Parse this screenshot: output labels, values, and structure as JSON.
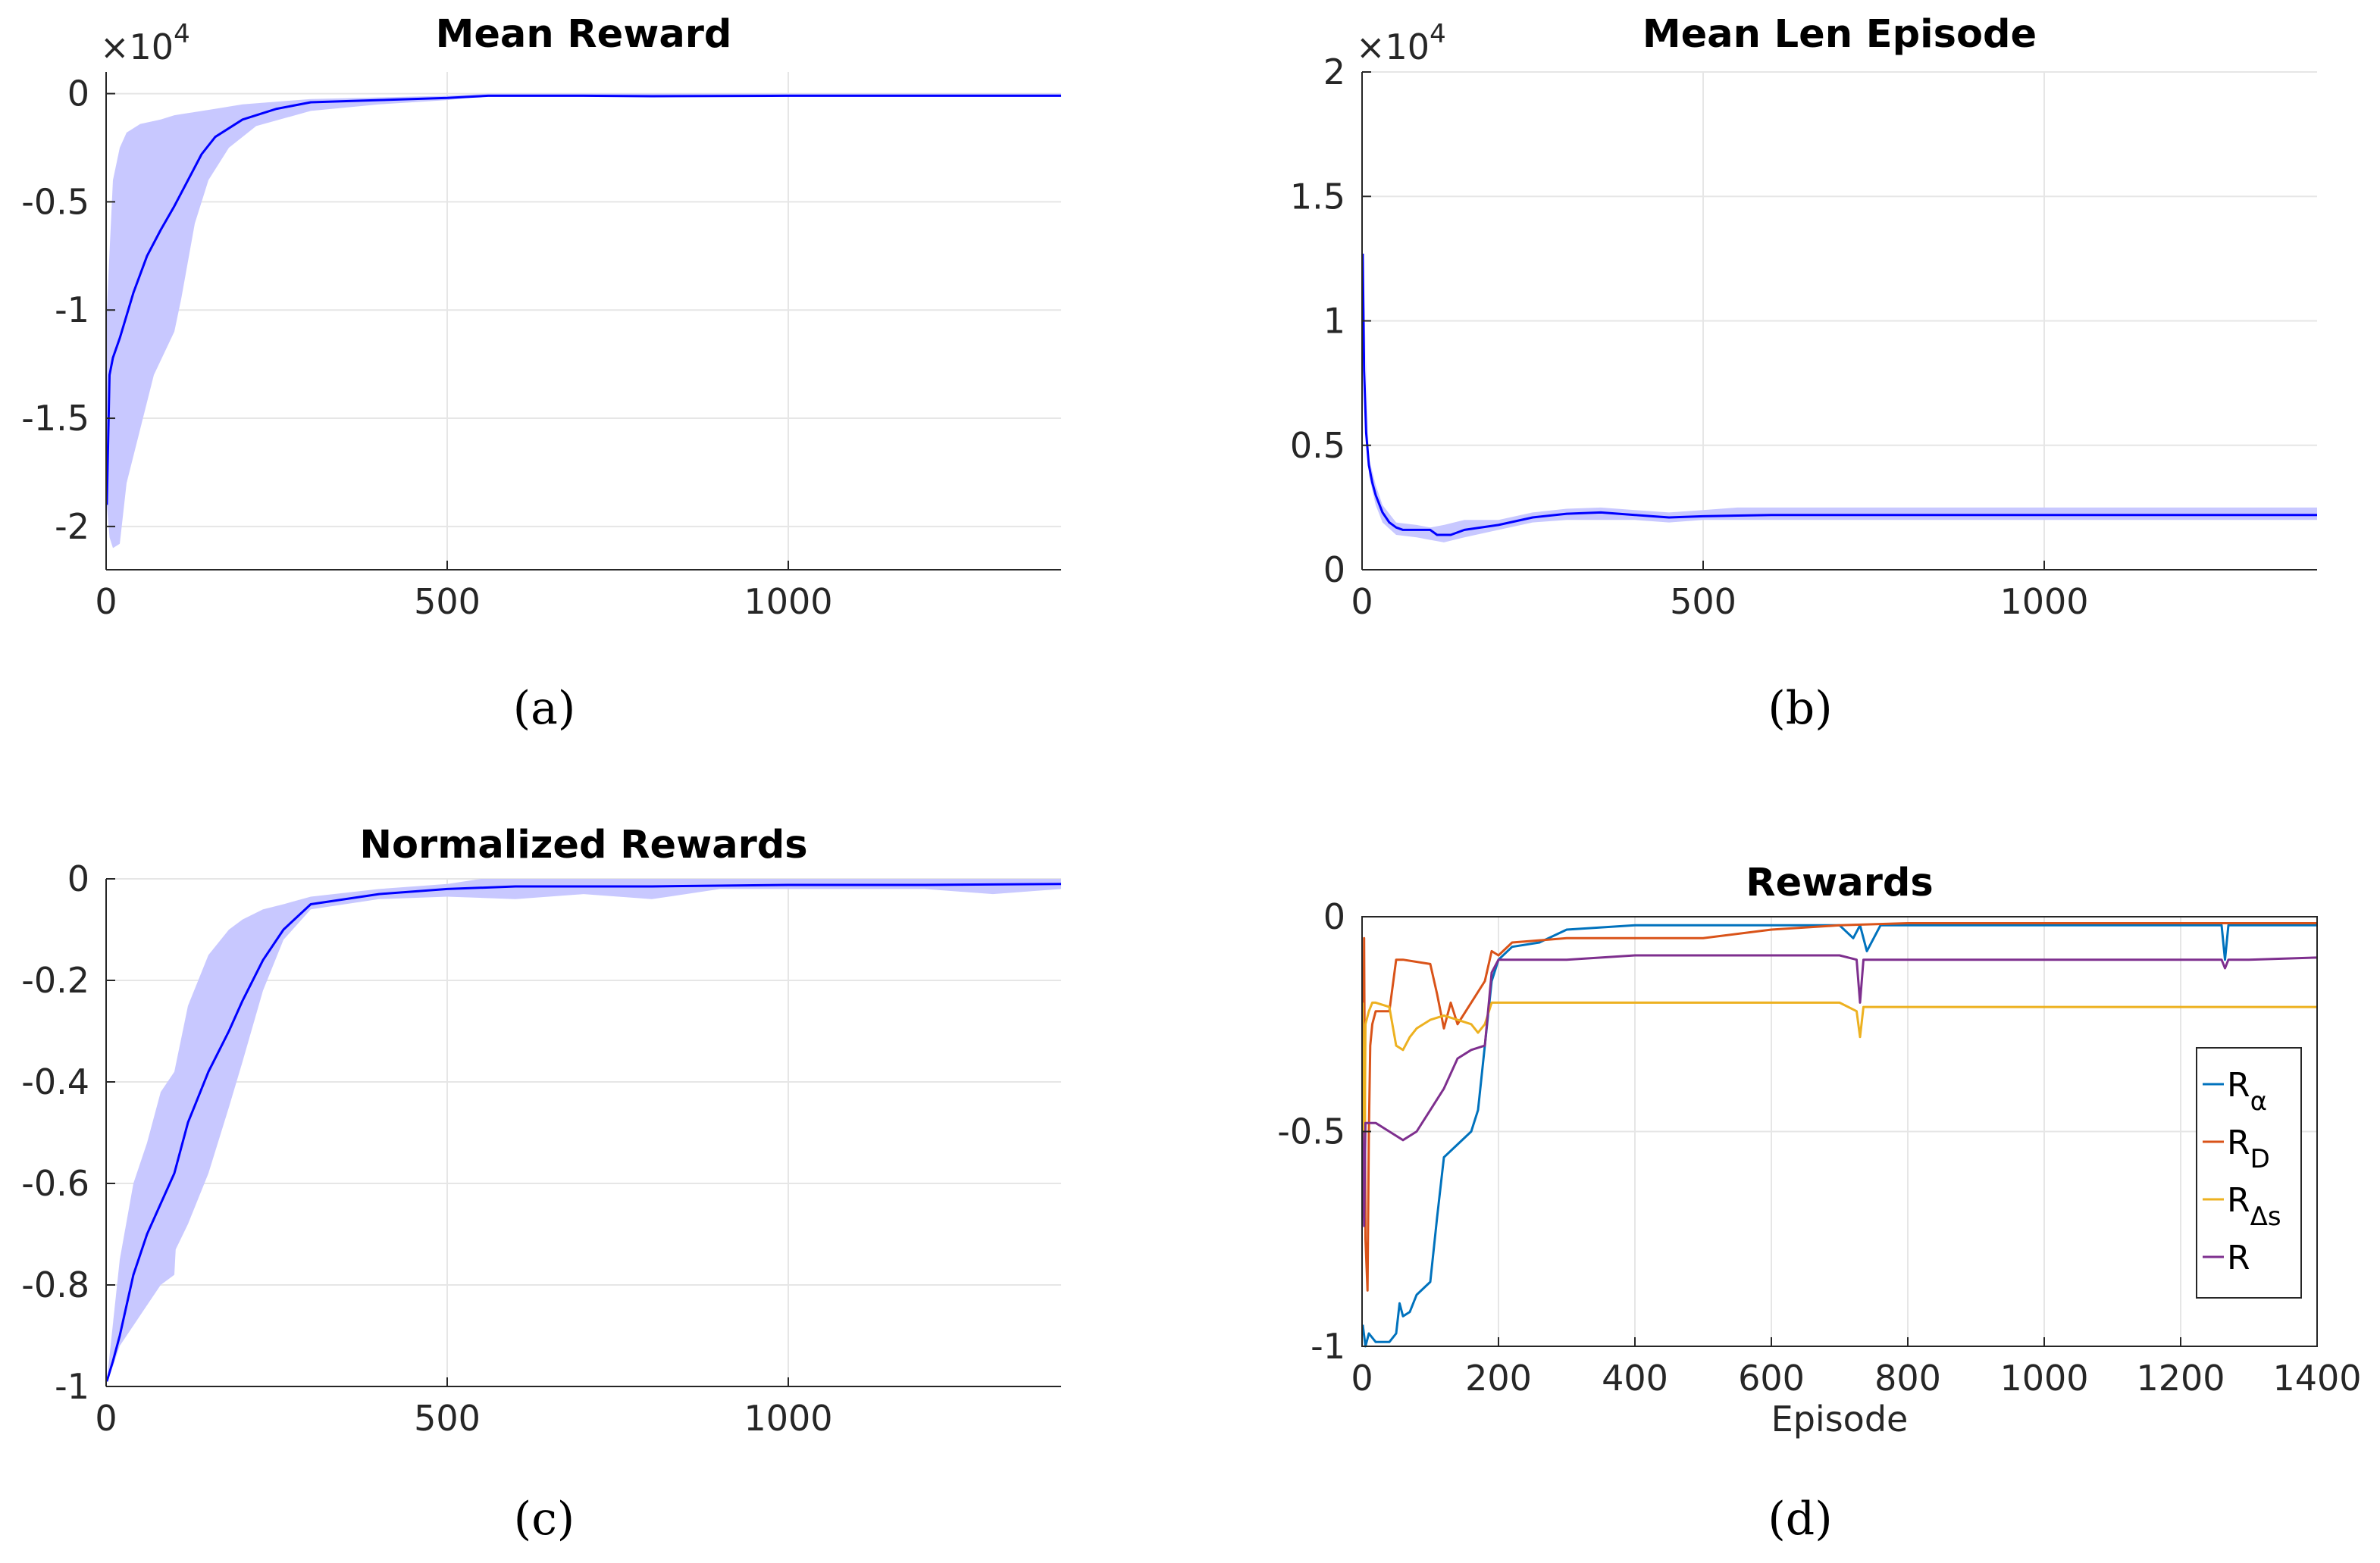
{
  "figure": {
    "panels": [
      {
        "label": "(a)"
      },
      {
        "label": "(b)"
      },
      {
        "label": "(c)"
      },
      {
        "label": "(d)"
      }
    ]
  },
  "chart_data": [
    {
      "type": "line",
      "title": "Mean Reward",
      "xlabel": "",
      "ylabel": "",
      "exponent_label": "×10",
      "exponent_power": "4",
      "xlim": [
        0,
        1400
      ],
      "ylim": [
        -2.2,
        0.1
      ],
      "xticks": [
        0,
        500,
        1000
      ],
      "xtick_labels": [
        "0",
        "500",
        "1000"
      ],
      "yticks": [
        -2,
        -1.5,
        -1,
        -0.5,
        0
      ],
      "ytick_labels": [
        "-2",
        "-1.5",
        "-1",
        "-0.5",
        "0"
      ],
      "grid": true,
      "line_color": "#0000ff",
      "band_color": "#c8c8ff",
      "series": [
        {
          "name": "mean",
          "x": [
            1,
            5,
            10,
            20,
            40,
            60,
            80,
            100,
            120,
            140,
            160,
            200,
            250,
            300,
            400,
            500,
            560,
            700,
            800,
            1000,
            1200,
            1400
          ],
          "values": [
            -1.9,
            -1.3,
            -1.22,
            -1.13,
            -0.92,
            -0.75,
            -0.63,
            -0.52,
            -0.4,
            -0.28,
            -0.2,
            -0.12,
            -0.07,
            -0.04,
            -0.03,
            -0.02,
            -0.01,
            -0.01,
            -0.012,
            -0.01,
            -0.01,
            -0.01
          ]
        },
        {
          "name": "band_upper",
          "x": [
            1,
            10,
            20,
            30,
            50,
            80,
            100,
            120,
            160,
            200,
            300,
            500,
            560,
            1400
          ],
          "values": [
            -1.0,
            -0.4,
            -0.25,
            -0.18,
            -0.14,
            -0.12,
            -0.1,
            -0.09,
            -0.07,
            -0.05,
            -0.025,
            -0.01,
            0.0,
            0.0
          ]
        },
        {
          "name": "band_lower",
          "x": [
            1,
            5,
            10,
            20,
            30,
            50,
            70,
            100,
            110,
            130,
            150,
            180,
            220,
            300,
            400,
            500,
            560,
            1400
          ],
          "values": [
            -1.9,
            -2.05,
            -2.1,
            -2.08,
            -1.8,
            -1.55,
            -1.3,
            -1.1,
            -0.95,
            -0.6,
            -0.4,
            -0.25,
            -0.15,
            -0.08,
            -0.05,
            -0.03,
            -0.01,
            -0.01
          ]
        }
      ]
    },
    {
      "type": "line",
      "title": "Mean Len Episode",
      "xlabel": "",
      "ylabel": "",
      "exponent_label": "×10",
      "exponent_power": "4",
      "xlim": [
        0,
        1400
      ],
      "ylim": [
        0,
        2.0
      ],
      "xticks": [
        0,
        500,
        1000
      ],
      "xtick_labels": [
        "0",
        "500",
        "1000"
      ],
      "yticks": [
        0,
        0.5,
        1,
        1.5,
        2
      ],
      "ytick_labels": [
        "0",
        "0.5",
        "1",
        "1.5",
        "2"
      ],
      "grid": true,
      "line_color": "#0000ff",
      "band_color": "#c8c8ff",
      "series": [
        {
          "name": "mean",
          "x": [
            1,
            3,
            6,
            10,
            15,
            20,
            30,
            40,
            50,
            60,
            80,
            100,
            110,
            130,
            150,
            200,
            250,
            300,
            350,
            400,
            450,
            500,
            600,
            800,
            1000,
            1200,
            1400
          ],
          "values": [
            1.27,
            0.8,
            0.55,
            0.42,
            0.35,
            0.3,
            0.23,
            0.19,
            0.17,
            0.16,
            0.16,
            0.16,
            0.14,
            0.14,
            0.16,
            0.18,
            0.21,
            0.225,
            0.23,
            0.22,
            0.21,
            0.215,
            0.22,
            0.22,
            0.22,
            0.22,
            0.22
          ]
        },
        {
          "name": "band_upper",
          "x": [
            1,
            10,
            20,
            30,
            50,
            80,
            100,
            120,
            150,
            200,
            250,
            300,
            350,
            400,
            450,
            500,
            550,
            800,
            1000,
            1400
          ],
          "values": [
            1.27,
            0.45,
            0.34,
            0.26,
            0.19,
            0.18,
            0.17,
            0.18,
            0.2,
            0.2,
            0.23,
            0.245,
            0.25,
            0.24,
            0.23,
            0.24,
            0.25,
            0.25,
            0.25,
            0.25
          ]
        },
        {
          "name": "band_lower",
          "x": [
            1,
            10,
            20,
            30,
            50,
            80,
            100,
            120,
            150,
            200,
            250,
            300,
            350,
            400,
            450,
            500,
            550,
            800,
            1000,
            1400
          ],
          "values": [
            1.27,
            0.38,
            0.26,
            0.19,
            0.14,
            0.13,
            0.12,
            0.11,
            0.13,
            0.16,
            0.19,
            0.2,
            0.2,
            0.2,
            0.19,
            0.2,
            0.2,
            0.2,
            0.2,
            0.2
          ]
        }
      ]
    },
    {
      "type": "line",
      "title": "Normalized Rewards",
      "xlabel": "",
      "ylabel": "",
      "xlim": [
        0,
        1400
      ],
      "ylim": [
        -1.0,
        0.0
      ],
      "xticks": [
        0,
        500,
        1000
      ],
      "xtick_labels": [
        "0",
        "500",
        "1000"
      ],
      "yticks": [
        -1,
        -0.8,
        -0.6,
        -0.4,
        -0.2,
        0
      ],
      "ytick_labels": [
        "-1",
        "-0.8",
        "-0.6",
        "-0.4",
        "-0.2",
        "0"
      ],
      "grid": true,
      "line_color": "#0000ff",
      "band_color": "#c8c8ff",
      "series": [
        {
          "name": "mean",
          "x": [
            1,
            10,
            20,
            40,
            60,
            80,
            100,
            120,
            150,
            180,
            200,
            230,
            260,
            300,
            400,
            500,
            600,
            800,
            1000,
            1200,
            1400
          ],
          "values": [
            -0.99,
            -0.95,
            -0.9,
            -0.78,
            -0.7,
            -0.64,
            -0.58,
            -0.48,
            -0.38,
            -0.3,
            -0.24,
            -0.16,
            -0.1,
            -0.05,
            -0.03,
            -0.02,
            -0.015,
            -0.015,
            -0.012,
            -0.012,
            -0.01
          ]
        },
        {
          "name": "band_upper",
          "x": [
            1,
            20,
            40,
            60,
            80,
            100,
            120,
            150,
            180,
            200,
            230,
            260,
            300,
            400,
            500,
            550,
            1400
          ],
          "values": [
            -0.99,
            -0.75,
            -0.6,
            -0.52,
            -0.42,
            -0.38,
            -0.25,
            -0.15,
            -0.1,
            -0.08,
            -0.06,
            -0.05,
            -0.035,
            -0.02,
            -0.01,
            0.0,
            0.0
          ]
        },
        {
          "name": "band_lower",
          "x": [
            1,
            10,
            20,
            40,
            60,
            80,
            100,
            102,
            120,
            150,
            180,
            200,
            230,
            260,
            300,
            400,
            500,
            600,
            700,
            800,
            900,
            1000,
            1200,
            1300,
            1400
          ],
          "values": [
            -0.99,
            -0.96,
            -0.92,
            -0.88,
            -0.84,
            -0.8,
            -0.78,
            -0.73,
            -0.68,
            -0.58,
            -0.45,
            -0.36,
            -0.22,
            -0.12,
            -0.06,
            -0.04,
            -0.035,
            -0.04,
            -0.03,
            -0.04,
            -0.02,
            -0.02,
            -0.02,
            -0.03,
            -0.02
          ]
        }
      ]
    },
    {
      "type": "line",
      "title": "Rewards",
      "xlabel": "Episode",
      "ylabel": "",
      "xlim": [
        0,
        1400
      ],
      "ylim": [
        -1.0,
        0.0
      ],
      "xticks": [
        0,
        200,
        400,
        600,
        800,
        1000,
        1200,
        1400
      ],
      "xtick_labels": [
        "0",
        "200",
        "400",
        "600",
        "800",
        "1000",
        "1200",
        "1400"
      ],
      "yticks": [
        -1,
        -0.5,
        0
      ],
      "ytick_labels": [
        "-1",
        "-0.5",
        "0"
      ],
      "grid": true,
      "legend": {
        "placement": "right",
        "entries": [
          {
            "base": "R",
            "sub": "α",
            "color": "#0072bd"
          },
          {
            "base": "R",
            "sub": "D",
            "color": "#d95319"
          },
          {
            "base": "R",
            "sub": "Δs",
            "color": "#edb120"
          },
          {
            "base": "R",
            "sub": "",
            "color": "#7e2f8e"
          }
        ]
      },
      "series": [
        {
          "name": "R_alpha",
          "color": "#0072bd",
          "x": [
            1,
            5,
            10,
            20,
            40,
            50,
            55,
            60,
            70,
            80,
            100,
            110,
            120,
            140,
            160,
            170,
            180,
            190,
            200,
            220,
            260,
            300,
            400,
            500,
            600,
            700,
            720,
            730,
            740,
            760,
            800,
            1000,
            1200,
            1260,
            1265,
            1270,
            1300,
            1400
          ],
          "values": [
            -0.95,
            -1.0,
            -0.97,
            -0.99,
            -0.99,
            -0.97,
            -0.9,
            -0.93,
            -0.92,
            -0.88,
            -0.85,
            -0.7,
            -0.56,
            -0.53,
            -0.5,
            -0.45,
            -0.3,
            -0.15,
            -0.1,
            -0.07,
            -0.06,
            -0.03,
            -0.02,
            -0.02,
            -0.02,
            -0.02,
            -0.05,
            -0.02,
            -0.08,
            -0.02,
            -0.02,
            -0.02,
            -0.02,
            -0.02,
            -0.1,
            -0.02,
            -0.02,
            -0.02
          ]
        },
        {
          "name": "R_D",
          "color": "#d95319",
          "x": [
            1,
            3,
            5,
            8,
            10,
            12,
            15,
            20,
            40,
            50,
            60,
            100,
            110,
            120,
            130,
            140,
            160,
            180,
            190,
            200,
            220,
            300,
            400,
            500,
            600,
            700,
            800,
            1000,
            1200,
            1400
          ],
          "values": [
            -0.7,
            -0.05,
            -0.75,
            -0.87,
            -0.5,
            -0.3,
            -0.25,
            -0.22,
            -0.22,
            -0.1,
            -0.1,
            -0.11,
            -0.18,
            -0.26,
            -0.2,
            -0.25,
            -0.2,
            -0.15,
            -0.08,
            -0.09,
            -0.06,
            -0.05,
            -0.05,
            -0.05,
            -0.03,
            -0.02,
            -0.015,
            -0.015,
            -0.015,
            -0.015
          ]
        },
        {
          "name": "R_delta_s",
          "color": "#edb120",
          "x": [
            1,
            3,
            5,
            10,
            15,
            20,
            40,
            50,
            60,
            70,
            80,
            100,
            120,
            140,
            160,
            170,
            180,
            190,
            200,
            300,
            400,
            500,
            600,
            700,
            725,
            730,
            735,
            760,
            800,
            1000,
            1200,
            1400
          ],
          "values": [
            -0.2,
            -0.7,
            -0.25,
            -0.22,
            -0.2,
            -0.2,
            -0.21,
            -0.3,
            -0.31,
            -0.28,
            -0.26,
            -0.24,
            -0.23,
            -0.24,
            -0.25,
            -0.27,
            -0.25,
            -0.2,
            -0.2,
            -0.2,
            -0.2,
            -0.2,
            -0.2,
            -0.2,
            -0.22,
            -0.28,
            -0.21,
            -0.21,
            -0.21,
            -0.21,
            -0.21,
            -0.21
          ]
        },
        {
          "name": "R",
          "color": "#7e2f8e",
          "x": [
            1,
            3,
            5,
            10,
            20,
            40,
            60,
            80,
            100,
            120,
            140,
            160,
            180,
            190,
            200,
            300,
            400,
            500,
            600,
            700,
            725,
            730,
            735,
            760,
            800,
            1000,
            1200,
            1260,
            1265,
            1270,
            1300,
            1400
          ],
          "values": [
            -0.5,
            -0.72,
            -0.48,
            -0.48,
            -0.48,
            -0.5,
            -0.52,
            -0.5,
            -0.45,
            -0.4,
            -0.33,
            -0.31,
            -0.3,
            -0.13,
            -0.1,
            -0.1,
            -0.09,
            -0.09,
            -0.09,
            -0.09,
            -0.1,
            -0.2,
            -0.1,
            -0.1,
            -0.1,
            -0.1,
            -0.1,
            -0.1,
            -0.12,
            -0.1,
            -0.1,
            -0.095
          ]
        }
      ]
    }
  ]
}
